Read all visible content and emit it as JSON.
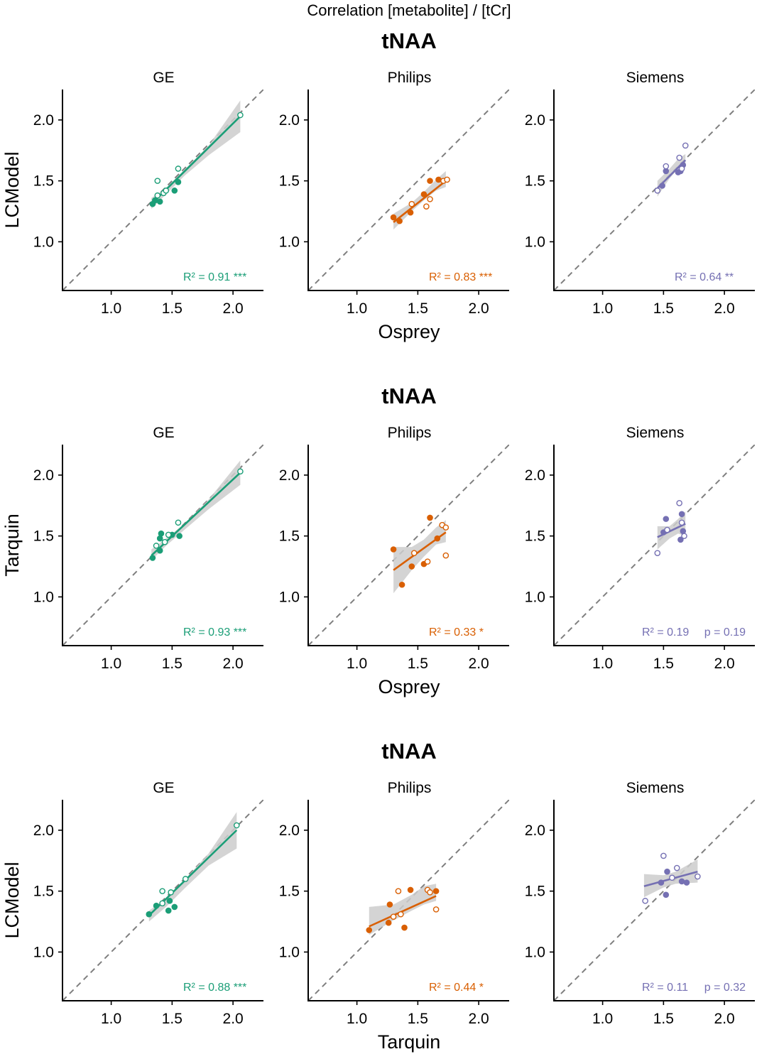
{
  "figure": {
    "title": "Correlation [metabolite]  / [tCr]"
  },
  "colors": {
    "GE": "#1b9e77",
    "Philips": "#d95f02",
    "Siemens": "#7570b3",
    "band": "#cccccc",
    "identity": "#7f7f7f"
  },
  "chart_data": [
    {
      "type": "scatter",
      "title": "tNAA",
      "ylabel": "LCModel",
      "xlabel": "Osprey",
      "xlim": [
        0.6,
        2.25
      ],
      "ylim": [
        0.6,
        2.25
      ],
      "ticks": [
        "1.0",
        "1.5",
        "2.0"
      ],
      "panels": [
        {
          "vendor": "GE",
          "stat": "R² = 0.91 ***",
          "fit": {
            "x0": 1.33,
            "y0": 1.31,
            "x1": 2.06,
            "y1": 2.03
          },
          "band": {
            "x": [
              1.33,
              1.45,
              1.6,
              1.8,
              2.06
            ],
            "lo": [
              1.27,
              1.39,
              1.54,
              1.71,
              1.9
            ],
            "hi": [
              1.36,
              1.44,
              1.59,
              1.79,
              2.16
            ]
          },
          "points": [
            {
              "x": 1.34,
              "y": 1.31,
              "filled": true
            },
            {
              "x": 1.36,
              "y": 1.34,
              "filled": true
            },
            {
              "x": 1.4,
              "y": 1.33,
              "filled": true
            },
            {
              "x": 1.52,
              "y": 1.42,
              "filled": true
            },
            {
              "x": 1.55,
              "y": 1.49,
              "filled": true
            },
            {
              "x": 1.38,
              "y": 1.38,
              "filled": false
            },
            {
              "x": 1.43,
              "y": 1.4,
              "filled": false
            },
            {
              "x": 1.45,
              "y": 1.42,
              "filled": false
            },
            {
              "x": 1.38,
              "y": 1.5,
              "filled": false
            },
            {
              "x": 1.55,
              "y": 1.6,
              "filled": false
            },
            {
              "x": 2.06,
              "y": 2.04,
              "filled": false
            }
          ]
        },
        {
          "vendor": "Philips",
          "stat": "R² = 0.83 ***",
          "fit": {
            "x0": 1.3,
            "y0": 1.16,
            "x1": 1.73,
            "y1": 1.5
          },
          "band": {
            "x": [
              1.3,
              1.45,
              1.55,
              1.65,
              1.73
            ],
            "lo": [
              1.1,
              1.25,
              1.34,
              1.42,
              1.45
            ],
            "hi": [
              1.23,
              1.32,
              1.41,
              1.51,
              1.58
            ]
          },
          "points": [
            {
              "x": 1.3,
              "y": 1.2,
              "filled": true
            },
            {
              "x": 1.35,
              "y": 1.17,
              "filled": true
            },
            {
              "x": 1.44,
              "y": 1.24,
              "filled": true
            },
            {
              "x": 1.55,
              "y": 1.39,
              "filled": true
            },
            {
              "x": 1.6,
              "y": 1.5,
              "filled": true
            },
            {
              "x": 1.67,
              "y": 1.51,
              "filled": true
            },
            {
              "x": 1.45,
              "y": 1.31,
              "filled": false
            },
            {
              "x": 1.57,
              "y": 1.29,
              "filled": false
            },
            {
              "x": 1.6,
              "y": 1.35,
              "filled": false
            },
            {
              "x": 1.71,
              "y": 1.5,
              "filled": false
            },
            {
              "x": 1.74,
              "y": 1.51,
              "filled": false
            }
          ]
        },
        {
          "vendor": "Siemens",
          "stat": "R² = 0.64 **",
          "fit": {
            "x0": 1.45,
            "y0": 1.44,
            "x1": 1.68,
            "y1": 1.67
          },
          "band": {
            "x": [
              1.45,
              1.55,
              1.62,
              1.68
            ],
            "lo": [
              1.37,
              1.52,
              1.6,
              1.62
            ],
            "hi": [
              1.5,
              1.6,
              1.68,
              1.72
            ]
          },
          "points": [
            {
              "x": 1.49,
              "y": 1.46,
              "filled": true
            },
            {
              "x": 1.52,
              "y": 1.58,
              "filled": true
            },
            {
              "x": 1.62,
              "y": 1.57,
              "filled": true
            },
            {
              "x": 1.64,
              "y": 1.58,
              "filled": true
            },
            {
              "x": 1.66,
              "y": 1.63,
              "filled": true
            },
            {
              "x": 1.45,
              "y": 1.42,
              "filled": false
            },
            {
              "x": 1.52,
              "y": 1.62,
              "filled": false
            },
            {
              "x": 1.63,
              "y": 1.69,
              "filled": false
            },
            {
              "x": 1.65,
              "y": 1.6,
              "filled": false
            },
            {
              "x": 1.68,
              "y": 1.79,
              "filled": false
            }
          ]
        }
      ]
    },
    {
      "type": "scatter",
      "title": "tNAA",
      "ylabel": "Tarquin",
      "xlabel": "Osprey",
      "xlim": [
        0.6,
        2.25
      ],
      "ylim": [
        0.6,
        2.25
      ],
      "ticks": [
        "1.0",
        "1.5",
        "2.0"
      ],
      "panels": [
        {
          "vendor": "GE",
          "stat": "R² = 0.93 ***",
          "fit": {
            "x0": 1.33,
            "y0": 1.34,
            "x1": 2.06,
            "y1": 2.02
          },
          "band": {
            "x": [
              1.33,
              1.45,
              1.6,
              1.8,
              2.06
            ],
            "lo": [
              1.3,
              1.42,
              1.55,
              1.72,
              1.92
            ],
            "hi": [
              1.39,
              1.48,
              1.6,
              1.8,
              2.12
            ]
          },
          "points": [
            {
              "x": 1.34,
              "y": 1.32,
              "filled": true
            },
            {
              "x": 1.4,
              "y": 1.38,
              "filled": true
            },
            {
              "x": 1.4,
              "y": 1.48,
              "filled": true
            },
            {
              "x": 1.41,
              "y": 1.52,
              "filled": true
            },
            {
              "x": 1.5,
              "y": 1.51,
              "filled": true
            },
            {
              "x": 1.56,
              "y": 1.5,
              "filled": true
            },
            {
              "x": 1.37,
              "y": 1.42,
              "filled": false
            },
            {
              "x": 1.44,
              "y": 1.45,
              "filled": false
            },
            {
              "x": 1.47,
              "y": 1.51,
              "filled": false
            },
            {
              "x": 1.55,
              "y": 1.61,
              "filled": false
            },
            {
              "x": 2.06,
              "y": 2.03,
              "filled": false
            }
          ]
        },
        {
          "vendor": "Philips",
          "stat": "R² = 0.33 *",
          "fit": {
            "x0": 1.3,
            "y0": 1.22,
            "x1": 1.73,
            "y1": 1.53
          },
          "band": {
            "x": [
              1.3,
              1.45,
              1.55,
              1.65,
              1.73
            ],
            "lo": [
              1.03,
              1.22,
              1.33,
              1.43,
              1.45
            ],
            "hi": [
              1.41,
              1.41,
              1.47,
              1.57,
              1.63
            ]
          },
          "points": [
            {
              "x": 1.3,
              "y": 1.39,
              "filled": true
            },
            {
              "x": 1.37,
              "y": 1.1,
              "filled": true
            },
            {
              "x": 1.45,
              "y": 1.25,
              "filled": true
            },
            {
              "x": 1.55,
              "y": 1.27,
              "filled": true
            },
            {
              "x": 1.6,
              "y": 1.65,
              "filled": true
            },
            {
              "x": 1.66,
              "y": 1.48,
              "filled": true
            },
            {
              "x": 1.47,
              "y": 1.36,
              "filled": false
            },
            {
              "x": 1.58,
              "y": 1.29,
              "filled": false
            },
            {
              "x": 1.7,
              "y": 1.59,
              "filled": false
            },
            {
              "x": 1.73,
              "y": 1.57,
              "filled": false
            },
            {
              "x": 1.73,
              "y": 1.34,
              "filled": false
            }
          ]
        },
        {
          "vendor": "Siemens",
          "stat": "R² = 0.19",
          "pvalue": "p = 0.19",
          "fit": {
            "x0": 1.45,
            "y0": 1.49,
            "x1": 1.68,
            "y1": 1.6
          },
          "band": {
            "x": [
              1.45,
              1.55,
              1.62,
              1.68
            ],
            "lo": [
              1.39,
              1.48,
              1.52,
              1.5
            ],
            "hi": [
              1.58,
              1.58,
              1.64,
              1.7
            ]
          },
          "points": [
            {
              "x": 1.52,
              "y": 1.64,
              "filled": true
            },
            {
              "x": 1.5,
              "y": 1.53,
              "filled": true
            },
            {
              "x": 1.64,
              "y": 1.47,
              "filled": true
            },
            {
              "x": 1.65,
              "y": 1.68,
              "filled": true
            },
            {
              "x": 1.66,
              "y": 1.54,
              "filled": true
            },
            {
              "x": 1.45,
              "y": 1.36,
              "filled": false
            },
            {
              "x": 1.53,
              "y": 1.55,
              "filled": false
            },
            {
              "x": 1.63,
              "y": 1.77,
              "filled": false
            },
            {
              "x": 1.65,
              "y": 1.61,
              "filled": false
            },
            {
              "x": 1.67,
              "y": 1.5,
              "filled": false
            }
          ]
        }
      ]
    },
    {
      "type": "scatter",
      "title": "tNAA",
      "ylabel": "LCModel",
      "xlabel": "Tarquin",
      "xlim": [
        0.6,
        2.25
      ],
      "ylim": [
        0.6,
        2.25
      ],
      "ticks": [
        "1.0",
        "1.5",
        "2.0"
      ],
      "panels": [
        {
          "vendor": "GE",
          "stat": "R² = 0.88 ***",
          "fit": {
            "x0": 1.31,
            "y0": 1.3,
            "x1": 2.03,
            "y1": 2.0
          },
          "band": {
            "x": [
              1.31,
              1.45,
              1.6,
              1.8,
              2.03
            ],
            "lo": [
              1.25,
              1.37,
              1.52,
              1.71,
              1.85
            ],
            "hi": [
              1.34,
              1.44,
              1.59,
              1.81,
              2.15
            ]
          },
          "points": [
            {
              "x": 1.31,
              "y": 1.31,
              "filled": true
            },
            {
              "x": 1.37,
              "y": 1.38,
              "filled": true
            },
            {
              "x": 1.47,
              "y": 1.34,
              "filled": true
            },
            {
              "x": 1.48,
              "y": 1.42,
              "filled": true
            },
            {
              "x": 1.52,
              "y": 1.37,
              "filled": true
            },
            {
              "x": 1.49,
              "y": 1.49,
              "filled": false
            },
            {
              "x": 1.42,
              "y": 1.4,
              "filled": false
            },
            {
              "x": 1.42,
              "y": 1.5,
              "filled": false
            },
            {
              "x": 1.61,
              "y": 1.6,
              "filled": false
            },
            {
              "x": 2.03,
              "y": 2.04,
              "filled": false
            }
          ]
        },
        {
          "vendor": "Philips",
          "stat": "R² = 0.44 *",
          "fit": {
            "x0": 1.1,
            "y0": 1.21,
            "x1": 1.65,
            "y1": 1.46
          },
          "band": {
            "x": [
              1.1,
              1.3,
              1.45,
              1.55,
              1.65
            ],
            "lo": [
              1.14,
              1.26,
              1.34,
              1.39,
              1.42
            ],
            "hi": [
              1.37,
              1.39,
              1.47,
              1.54,
              1.56
            ]
          },
          "points": [
            {
              "x": 1.1,
              "y": 1.18,
              "filled": true
            },
            {
              "x": 1.26,
              "y": 1.24,
              "filled": true
            },
            {
              "x": 1.27,
              "y": 1.39,
              "filled": true
            },
            {
              "x": 1.39,
              "y": 1.2,
              "filled": true
            },
            {
              "x": 1.44,
              "y": 1.51,
              "filled": true
            },
            {
              "x": 1.65,
              "y": 1.5,
              "filled": true
            },
            {
              "x": 1.3,
              "y": 1.29,
              "filled": false
            },
            {
              "x": 1.34,
              "y": 1.5,
              "filled": false
            },
            {
              "x": 1.36,
              "y": 1.31,
              "filled": false
            },
            {
              "x": 1.58,
              "y": 1.51,
              "filled": false
            },
            {
              "x": 1.6,
              "y": 1.49,
              "filled": false
            },
            {
              "x": 1.65,
              "y": 1.35,
              "filled": false
            }
          ]
        },
        {
          "vendor": "Siemens",
          "stat": "R² = 0.11",
          "pvalue": "p = 0.32",
          "fit": {
            "x0": 1.34,
            "y0": 1.54,
            "x1": 1.78,
            "y1": 1.66
          },
          "band": {
            "x": [
              1.34,
              1.5,
              1.6,
              1.78
            ],
            "lo": [
              1.45,
              1.53,
              1.56,
              1.57
            ],
            "hi": [
              1.64,
              1.63,
              1.66,
              1.76
            ]
          },
          "points": [
            {
              "x": 1.48,
              "y": 1.57,
              "filled": true
            },
            {
              "x": 1.52,
              "y": 1.47,
              "filled": true
            },
            {
              "x": 1.53,
              "y": 1.66,
              "filled": true
            },
            {
              "x": 1.65,
              "y": 1.58,
              "filled": true
            },
            {
              "x": 1.69,
              "y": 1.57,
              "filled": true
            },
            {
              "x": 1.35,
              "y": 1.42,
              "filled": false
            },
            {
              "x": 1.5,
              "y": 1.79,
              "filled": false
            },
            {
              "x": 1.57,
              "y": 1.61,
              "filled": false
            },
            {
              "x": 1.61,
              "y": 1.69,
              "filled": false
            },
            {
              "x": 1.78,
              "y": 1.62,
              "filled": false
            }
          ]
        }
      ]
    }
  ]
}
